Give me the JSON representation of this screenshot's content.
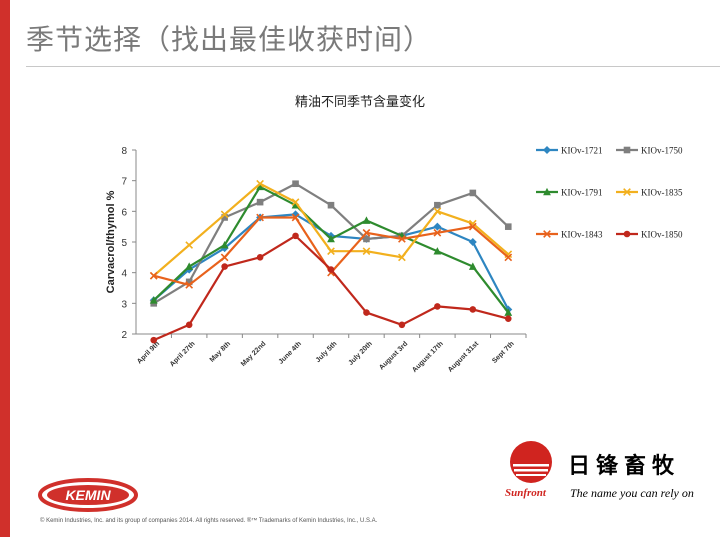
{
  "slide": {
    "title": "季节选择（找出最佳收获时间）",
    "footer": "© Kemin Industries, Inc. and its group of companies 2014. All rights reserved.  ®™ Trademarks of Kemin Industries, Inc., U.S.A."
  },
  "branding": {
    "kemin_text": "KEMIN",
    "sunfront_cn": "日锋畜牧",
    "sunfront_name": "Sunfront",
    "tagline": "The name you can rely on",
    "accent_red": "#d0302b"
  },
  "chart_data": {
    "type": "line",
    "title": "精油不同季节含量变化",
    "xlabel": "",
    "ylabel": "Carvacrol/thymol %",
    "ylim": [
      2,
      8
    ],
    "yticks": [
      "2",
      "3",
      "4",
      "5",
      "6",
      "7",
      "8"
    ],
    "grid": false,
    "legend_position": "right",
    "categories": [
      "April 9th",
      "April 27th",
      "May 8th",
      "May 22nd",
      "June 4th",
      "July 5th",
      "July 20th",
      "August 3rd",
      "August 17th",
      "August 31st",
      "Sept 7th"
    ],
    "series": [
      {
        "name": "KIOv-1721",
        "color": "#2e86c1",
        "marker": "diamond",
        "values": [
          3.1,
          4.1,
          4.8,
          5.8,
          5.9,
          5.2,
          5.1,
          5.2,
          5.5,
          5.0,
          2.8
        ]
      },
      {
        "name": "KIOv-1750",
        "color": "#7f7f7f",
        "marker": "square",
        "values": [
          3.0,
          3.7,
          5.8,
          6.3,
          6.9,
          6.2,
          5.1,
          5.2,
          6.2,
          6.6,
          5.5
        ]
      },
      {
        "name": "KIOv-1791",
        "color": "#2e8b2e",
        "marker": "triangle",
        "values": [
          3.1,
          4.2,
          4.9,
          6.8,
          6.2,
          5.1,
          5.7,
          5.2,
          4.7,
          4.2,
          2.7
        ]
      },
      {
        "name": "KIOv-1835",
        "color": "#f2b01e",
        "marker": "x",
        "values": [
          3.9,
          4.9,
          5.9,
          6.9,
          6.3,
          4.7,
          4.7,
          4.5,
          6.0,
          5.6,
          4.6
        ]
      },
      {
        "name": "KIOv-1843",
        "color": "#e8621c",
        "marker": "x",
        "values": [
          3.9,
          3.6,
          4.5,
          5.8,
          5.8,
          4.0,
          5.3,
          5.1,
          5.3,
          5.5,
          4.5
        ]
      },
      {
        "name": "KIOv-1850",
        "color": "#c0281c",
        "marker": "circle",
        "values": [
          1.8,
          2.3,
          4.2,
          4.5,
          5.2,
          4.1,
          2.7,
          2.3,
          2.9,
          2.8,
          2.5
        ]
      }
    ]
  }
}
